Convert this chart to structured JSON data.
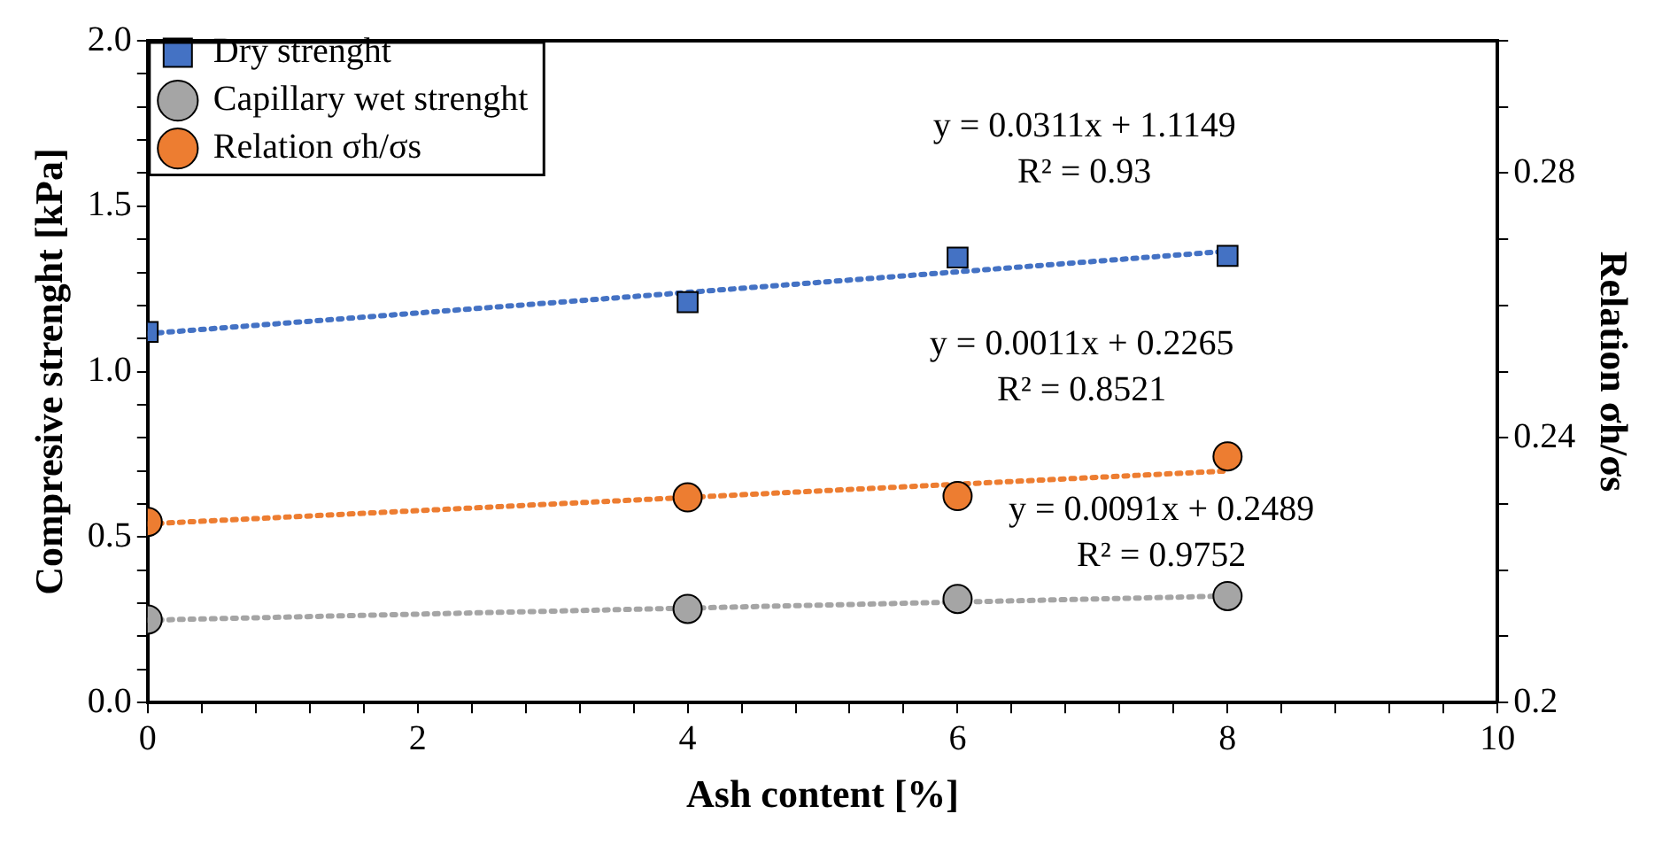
{
  "chart_data": {
    "type": "scatter",
    "xlabel": "Ash content [%]",
    "ylabel": "Compresive strenght [kPa]",
    "y2label": "Relation σh/σs",
    "xlim": [
      0,
      10
    ],
    "xticks": [
      0,
      {
        "value": 0.4,
        "label": null
      },
      {
        "value": 0.8,
        "label": null
      },
      {
        "value": 1.2,
        "label": null
      },
      {
        "value": 1.6,
        "label": null
      },
      2,
      {
        "value": 2.4,
        "label": null
      },
      {
        "value": 2.8,
        "label": null
      },
      {
        "value": 3.2,
        "label": null
      },
      {
        "value": 3.6,
        "label": null
      },
      4,
      {
        "value": 4.4,
        "label": null
      },
      {
        "value": 4.8,
        "label": null
      },
      {
        "value": 5.2,
        "label": null
      },
      {
        "value": 5.6,
        "label": null
      },
      6,
      {
        "value": 6.4,
        "label": null
      },
      {
        "value": 6.8,
        "label": null
      },
      {
        "value": 7.2,
        "label": null
      },
      {
        "value": 7.6,
        "label": null
      },
      8,
      {
        "value": 8.4,
        "label": null
      },
      {
        "value": 8.8,
        "label": null
      },
      {
        "value": 9.2,
        "label": null
      },
      {
        "value": 9.6,
        "label": null
      },
      10
    ],
    "ylim": [
      0,
      2
    ],
    "yticks": [
      {
        "value": 0,
        "label": "0.0"
      },
      {
        "value": 0.1,
        "label": null
      },
      {
        "value": 0.2,
        "label": null
      },
      {
        "value": 0.3,
        "label": null
      },
      {
        "value": 0.4,
        "label": null
      },
      0.5,
      {
        "value": 0.6,
        "label": null
      },
      {
        "value": 0.7,
        "label": null
      },
      {
        "value": 0.8,
        "label": null
      },
      {
        "value": 0.9,
        "label": null
      },
      {
        "value": 1,
        "label": "1.0"
      },
      {
        "value": 1.1,
        "label": null
      },
      {
        "value": 1.2,
        "label": null
      },
      {
        "value": 1.3,
        "label": null
      },
      {
        "value": 1.4,
        "label": null
      },
      1.5,
      {
        "value": 1.6,
        "label": null
      },
      {
        "value": 1.7,
        "label": null
      },
      {
        "value": 1.8,
        "label": null
      },
      {
        "value": 1.9,
        "label": null
      },
      {
        "value": 2,
        "label": "2.0"
      }
    ],
    "y2lim": [
      0.2,
      0.3
    ],
    "y2ticks": [
      0.2,
      {
        "value": 0.21,
        "label": null
      },
      {
        "value": 0.22,
        "label": null
      },
      {
        "value": 0.23,
        "label": null
      },
      0.24,
      {
        "value": 0.25,
        "label": null
      },
      {
        "value": 0.26,
        "label": null
      },
      {
        "value": 0.27,
        "label": null
      },
      0.28,
      {
        "value": 0.29,
        "label": null
      },
      {
        "value": 0.3,
        "label": null
      }
    ],
    "legend": "top left",
    "series": [
      {
        "name": "Dry strenght",
        "type": "scatter",
        "marker": "square",
        "color": "#4472c4",
        "x": [
          0,
          4,
          6,
          8
        ],
        "values": [
          1.12,
          1.21,
          1.345,
          1.35
        ]
      },
      {
        "name": "Capillary wet strenght",
        "type": "scatter",
        "marker": "circle",
        "color": "#a5a5a5",
        "x": [
          0,
          4,
          6,
          8
        ],
        "values": [
          0.251,
          0.283,
          0.313,
          0.322
        ]
      },
      {
        "name": "Relation σh/σs",
        "type": "scatter",
        "marker": "circle",
        "color": "#ed7d31",
        "axis": "y2",
        "x": [
          0,
          4,
          6,
          8
        ],
        "values": [
          0.2273,
          0.231,
          0.2312,
          0.2372
        ]
      },
      {
        "type": "line",
        "marker": "none",
        "line_style": "dotted",
        "color": "#4472c4",
        "x": [
          0,
          8
        ],
        "values": [
          1.115,
          1.364
        ]
      },
      {
        "type": "line",
        "marker": "none",
        "line_style": "dotted",
        "color": "#a5a5a5",
        "x": [
          0,
          8
        ],
        "values": [
          0.249,
          0.322
        ]
      },
      {
        "type": "line",
        "marker": "none",
        "line_style": "dotted",
        "color": "#ed7d31",
        "axis": "y2",
        "x": [
          0,
          8
        ],
        "values": [
          0.227,
          0.235
        ]
      }
    ],
    "annotations": [
      "y = 0.0311x + 1.1149\nR² = 0.93",
      "y = 0.0011x + 0.2265\nR² = 0.8521",
      "y = 0.0091x + 0.2489\nR² = 0.9752"
    ]
  }
}
